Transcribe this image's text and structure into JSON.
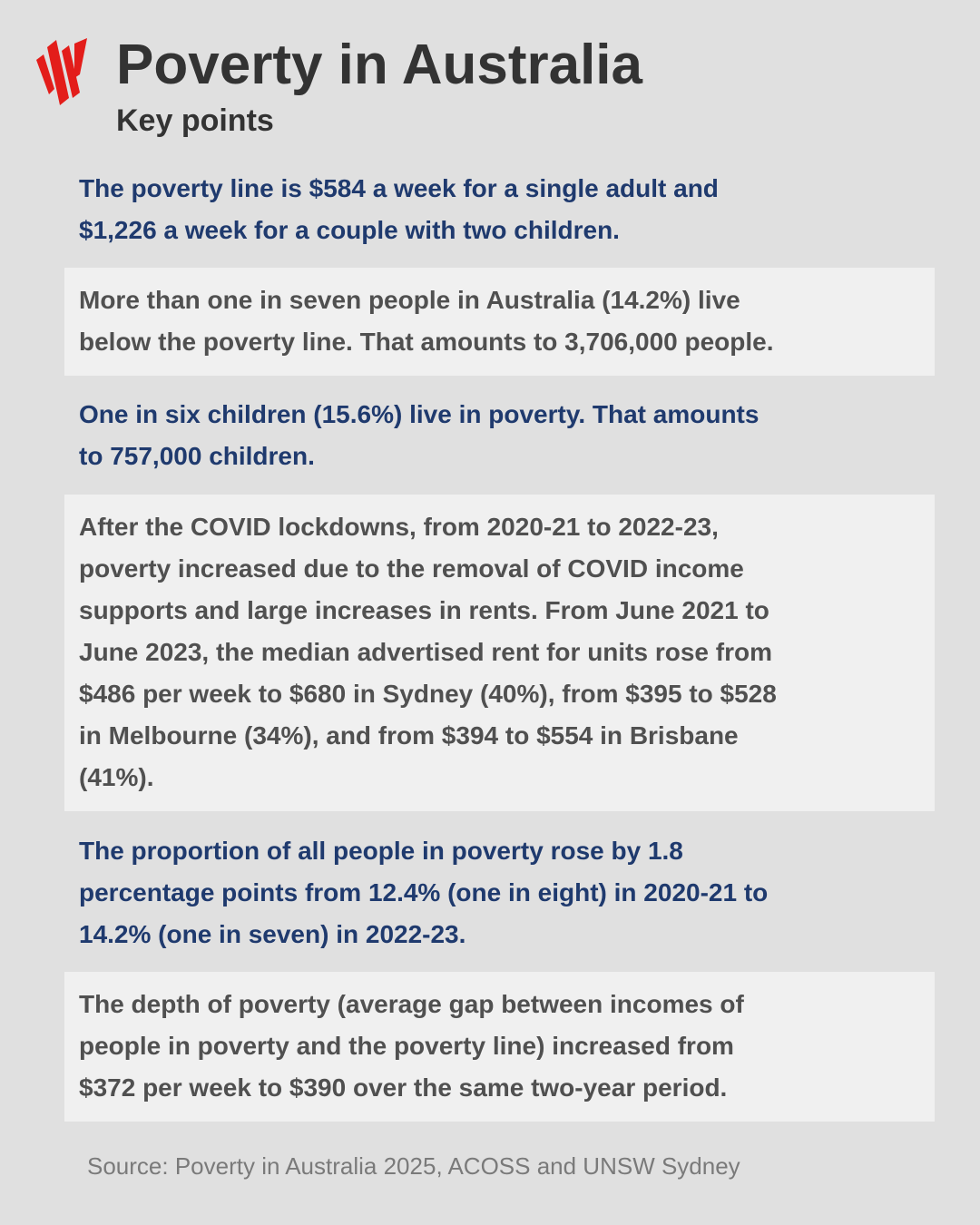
{
  "header": {
    "title": "Poverty in Australia",
    "subtitle": "Key points"
  },
  "points": [
    {
      "lines": [
        "The poverty line is $584 a week for a single adult and",
        "$1,226 a week for a couple with two children."
      ]
    },
    {
      "lines": [
        "More than one in seven people in Australia (14.2%) live",
        "below the poverty line. That amounts to 3,706,000 people."
      ]
    },
    {
      "lines": [
        "One in six children (15.6%) live in poverty. That amounts",
        "to 757,000 children."
      ]
    },
    {
      "lines": [
        "After the COVID lockdowns, from 2020-21 to 2022-23,",
        "poverty increased due to the removal of COVID income",
        "supports and large increases in rents. From June 2021 to",
        "June 2023, the median advertised rent for units rose from",
        "$486 per week to $680 in Sydney (40%), from $395 to $528",
        "in Melbourne (34%), and from $394 to $554 in Brisbane",
        "(41%)."
      ]
    },
    {
      "lines": [
        "The proportion of all people in poverty rose by 1.8",
        "percentage points from 12.4% (one in eight) in 2020-21 to",
        "14.2% (one in seven) in 2022-23."
      ]
    },
    {
      "lines": [
        "The depth of poverty (average gap between incomes of",
        "people in poverty and the poverty line) increased from",
        "$372 per week to $390 over the same two-year period."
      ]
    }
  ],
  "source": "Source: Poverty in Australia 2025, ACOSS and UNSW Sydney"
}
